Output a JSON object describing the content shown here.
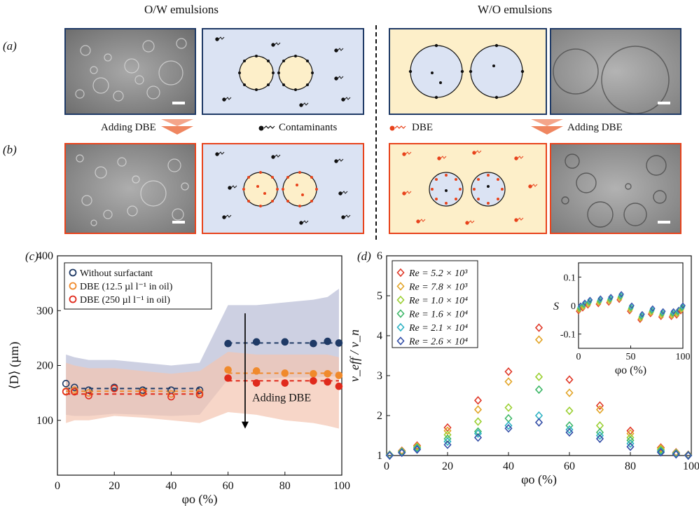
{
  "headers": {
    "ow": "O/W emulsions",
    "wo": "W/O emulsions"
  },
  "panel_labels": {
    "a": "(a)",
    "b": "(b)",
    "c": "(c)",
    "d": "(d)"
  },
  "annotations": {
    "adding_dbe_left": "Adding DBE",
    "adding_dbe_right": "Adding DBE",
    "contaminants": "Contaminants",
    "dbe": "DBE",
    "adding_dbe_c": "Adding DBE"
  },
  "colors": {
    "navy": "#1f3a66",
    "red": "#e8431c",
    "blue_bg": "#dbe3f3",
    "yellow_bg": "#fdefc9"
  },
  "chart_data": [
    {
      "type": "scatter",
      "panel": "c",
      "xlabel": "φo (%)",
      "ylabel": "⟨D⟩ (µm)",
      "xlim": [
        0,
        100
      ],
      "ylim": [
        0,
        400
      ],
      "xticks": [
        0,
        20,
        40,
        60,
        80,
        100
      ],
      "yticks": [
        100,
        200,
        300,
        400
      ],
      "legend_position": "top-left",
      "series": [
        {
          "name": "Without surfactant",
          "color": "#1f3a66",
          "x": [
            3,
            6,
            11,
            20,
            30,
            40,
            50,
            60,
            70,
            80,
            90,
            95,
            99
          ],
          "y": [
            167,
            160,
            155,
            160,
            155,
            155,
            155,
            240,
            243,
            243,
            240,
            244,
            241
          ],
          "band_upper": [
            220,
            215,
            210,
            210,
            205,
            200,
            205,
            310,
            310,
            315,
            320,
            325,
            340
          ],
          "band_lower": [
            110,
            108,
            108,
            112,
            110,
            108,
            110,
            175,
            175,
            178,
            178,
            180,
            180
          ],
          "fit": [
            [
              3,
              50,
              158
            ],
            [
              60,
              99,
              241
            ]
          ]
        },
        {
          "name": "DBE (12.5 µl l⁻¹ in oil)",
          "color": "#f08a2c",
          "x": [
            3,
            6,
            11,
            20,
            30,
            40,
            50,
            60,
            70,
            80,
            90,
            95,
            99
          ],
          "y": [
            153,
            155,
            150,
            158,
            152,
            148,
            150,
            192,
            190,
            186,
            185,
            185,
            182
          ],
          "fit": [
            [
              3,
              50,
              153
            ],
            [
              60,
              99,
              186
            ]
          ]
        },
        {
          "name": "DBE (250 µl l⁻¹ in oil)",
          "color": "#e02a1c",
          "x": [
            3,
            6,
            11,
            20,
            30,
            40,
            50,
            60,
            70,
            80,
            90,
            95,
            99
          ],
          "y": [
            152,
            152,
            145,
            158,
            150,
            143,
            147,
            177,
            168,
            168,
            172,
            170,
            162
          ],
          "band_upper": [
            205,
            200,
            195,
            195,
            190,
            185,
            190,
            225,
            220,
            220,
            220,
            220,
            215
          ],
          "band_lower": [
            95,
            100,
            100,
            108,
            105,
            100,
            95,
            115,
            110,
            100,
            95,
            90,
            85
          ],
          "fit": [
            [
              3,
              50,
              148
            ],
            [
              60,
              99,
              172
            ]
          ]
        }
      ]
    },
    {
      "type": "scatter",
      "panel": "d",
      "xlabel": "φo (%)",
      "ylabel": "ν_eff / ν_n",
      "xlim": [
        0,
        100
      ],
      "ylim": [
        1,
        6
      ],
      "xticks": [
        0,
        20,
        40,
        60,
        80,
        100
      ],
      "yticks": [
        1,
        2,
        3,
        4,
        5,
        6
      ],
      "legend_position": "top-left",
      "series": [
        {
          "name": "Re = 5.2 × 10³",
          "color": "#e03a2a",
          "x": [
            1,
            5,
            10,
            20,
            30,
            40,
            50,
            60,
            70,
            80,
            90,
            95,
            99
          ],
          "y": [
            1.02,
            1.12,
            1.25,
            1.7,
            2.38,
            3.1,
            4.2,
            2.9,
            2.25,
            1.62,
            1.2,
            1.08,
            1.02
          ]
        },
        {
          "name": "Re = 7.8 × 10³",
          "color": "#e3a62a",
          "x": [
            1,
            5,
            10,
            20,
            30,
            40,
            50,
            60,
            70,
            80,
            90,
            95,
            99
          ],
          "y": [
            1.02,
            1.11,
            1.23,
            1.62,
            2.15,
            2.85,
            3.9,
            2.57,
            2.15,
            1.55,
            1.18,
            1.07,
            1.01
          ]
        },
        {
          "name": "Re = 1.0 × 10⁴",
          "color": "#9cd034",
          "x": [
            1,
            5,
            10,
            20,
            30,
            40,
            50,
            60,
            70,
            80,
            90,
            95,
            99
          ],
          "y": [
            1.02,
            1.1,
            1.21,
            1.52,
            1.85,
            2.2,
            2.97,
            2.12,
            1.75,
            1.45,
            1.15,
            1.06,
            1.01
          ]
        },
        {
          "name": "Re = 1.6 × 10⁴",
          "color": "#40b86a",
          "x": [
            1,
            5,
            10,
            20,
            30,
            40,
            50,
            60,
            70,
            80,
            90,
            95,
            99
          ],
          "y": [
            1.01,
            1.09,
            1.19,
            1.42,
            1.6,
            1.93,
            2.65,
            1.75,
            1.58,
            1.38,
            1.12,
            1.05,
            1.01
          ]
        },
        {
          "name": "Re = 2.1 × 10⁴",
          "color": "#2fb3c4",
          "x": [
            1,
            5,
            10,
            20,
            30,
            40,
            50,
            60,
            70,
            80,
            90,
            95,
            99
          ],
          "y": [
            1.01,
            1.08,
            1.17,
            1.35,
            1.55,
            1.75,
            2.0,
            1.65,
            1.5,
            1.3,
            1.1,
            1.04,
            1.0
          ]
        },
        {
          "name": "Re = 2.6 × 10⁴",
          "color": "#3650a8",
          "x": [
            1,
            5,
            10,
            20,
            30,
            40,
            50,
            60,
            70,
            80,
            90,
            95,
            99
          ],
          "y": [
            1.0,
            1.07,
            1.15,
            1.27,
            1.45,
            1.68,
            1.83,
            1.58,
            1.42,
            1.22,
            1.08,
            1.03,
            1.0
          ]
        }
      ],
      "inset": {
        "ylabel": "S",
        "xlabel": "φo (%)",
        "xlim": [
          0,
          100
        ],
        "ylim": [
          -0.15,
          0.15
        ],
        "xticks": [
          0,
          50,
          100
        ],
        "yticks": [
          0.1,
          0,
          -0.1
        ],
        "x": [
          1,
          5,
          10,
          20,
          30,
          40,
          50,
          60,
          70,
          80,
          90,
          95,
          99
        ],
        "y": [
          -0.01,
          0.0,
          0.01,
          0.015,
          0.02,
          0.03,
          -0.01,
          -0.04,
          -0.02,
          -0.03,
          -0.03,
          -0.025,
          -0.01
        ]
      }
    }
  ]
}
